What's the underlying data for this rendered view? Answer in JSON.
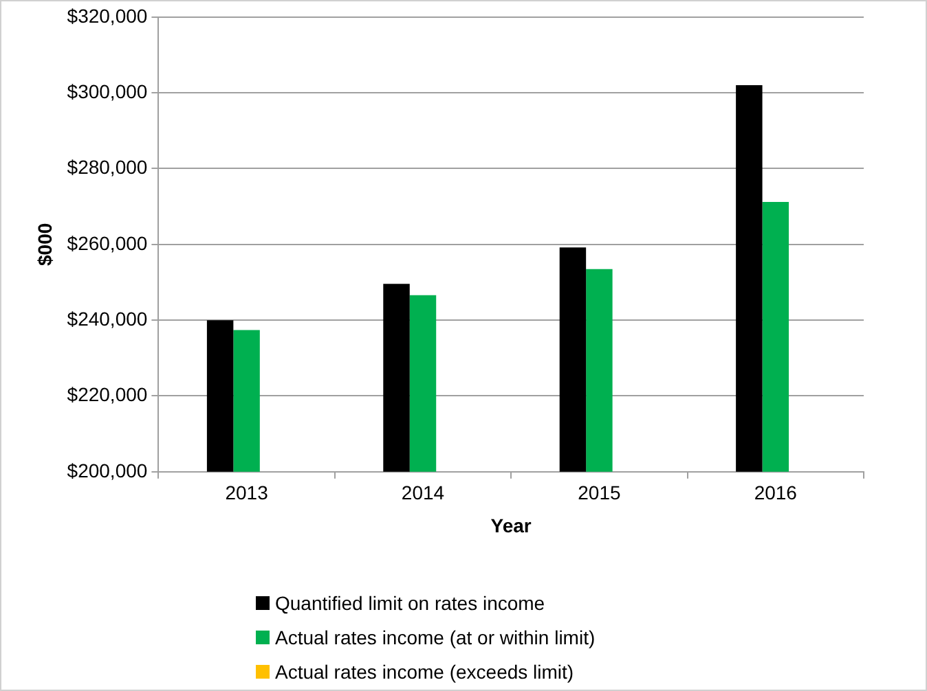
{
  "chart_data": {
    "type": "bar",
    "xlabel": "Year",
    "ylabel": "$000",
    "categories": [
      "2013",
      "2014",
      "2015",
      "2016"
    ],
    "series": [
      {
        "name": "Quantified limit on rates income",
        "color": "#000000",
        "values": [
          240000,
          249600,
          259200,
          302000
        ]
      },
      {
        "name": "Actual rates income (at or within limit)",
        "color": "#00b050",
        "values": [
          237400,
          246600,
          253500,
          271200
        ]
      },
      {
        "name": "Actual rates income (exceeds limit)",
        "color": "#ffc000",
        "values": [
          null,
          null,
          null,
          null
        ]
      }
    ],
    "ylim": [
      200000,
      320000
    ],
    "yticks": [
      {
        "value": 200000,
        "label": "$200,000"
      },
      {
        "value": 220000,
        "label": "$220,000"
      },
      {
        "value": 240000,
        "label": "$240,000"
      },
      {
        "value": 260000,
        "label": "$260,000"
      },
      {
        "value": 280000,
        "label": "$280,000"
      },
      {
        "value": 300000,
        "label": "$300,000"
      },
      {
        "value": 320000,
        "label": "$320,000"
      }
    ],
    "grid": "y",
    "legend": "bottom"
  }
}
